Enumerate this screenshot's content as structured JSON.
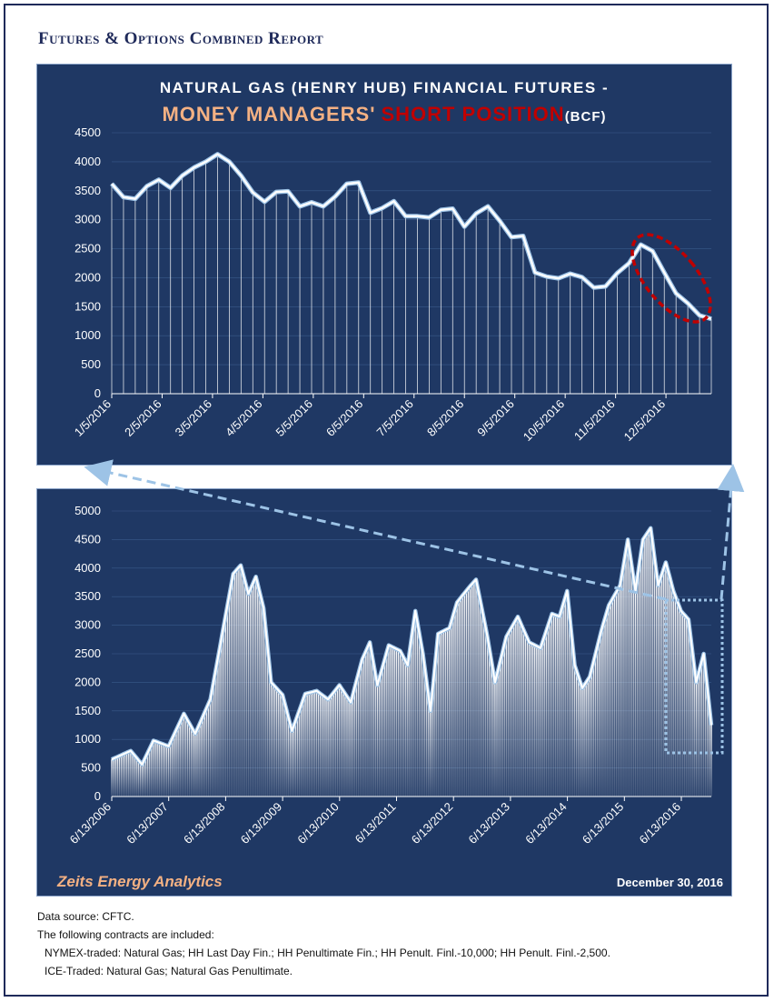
{
  "report_title": "Futures & Options Combined Report",
  "chart_data": [
    {
      "type": "area",
      "title_line1": "NATURAL GAS (HENRY HUB) FINANCIAL FUTURES -",
      "title_part1": "MONEY MANAGERS",
      "title_apostrophe": "'",
      "title_part2": "SHORT POSITION",
      "title_unit": "(BCF)",
      "ylim": [
        0,
        4500
      ],
      "yticks": [
        0,
        500,
        1000,
        1500,
        2000,
        2500,
        3000,
        3500,
        4000,
        4500
      ],
      "xtick_labels": [
        "1/5/2016",
        "2/5/2016",
        "3/5/2016",
        "4/5/2016",
        "5/5/2016",
        "6/5/2016",
        "7/5/2016",
        "8/5/2016",
        "9/5/2016",
        "10/5/2016",
        "11/5/2016",
        "12/5/2016"
      ],
      "values": [
        3620,
        3390,
        3360,
        3580,
        3690,
        3550,
        3760,
        3900,
        4000,
        4130,
        4000,
        3760,
        3470,
        3310,
        3480,
        3490,
        3230,
        3300,
        3230,
        3400,
        3620,
        3640,
        3120,
        3200,
        3320,
        3060,
        3060,
        3040,
        3170,
        3190,
        2880,
        3110,
        3230,
        2980,
        2700,
        2720,
        2090,
        2020,
        1990,
        2070,
        2010,
        1830,
        1850,
        2080,
        2250,
        2570,
        2460,
        2090,
        1730,
        1560,
        1350,
        1290
      ],
      "highlight_color": "#c00000",
      "accent_color": "#f4b183"
    },
    {
      "type": "area",
      "ylim": [
        0,
        5000
      ],
      "yticks": [
        0,
        500,
        1000,
        1500,
        2000,
        2500,
        3000,
        3500,
        4000,
        4500,
        5000
      ],
      "xtick_labels": [
        "6/13/2006",
        "6/13/2007",
        "6/13/2008",
        "6/13/2009",
        "6/13/2010",
        "6/13/2011",
        "6/13/2012",
        "6/13/2013",
        "6/13/2014",
        "6/13/2015",
        "6/13/2016"
      ],
      "key_points": [
        [
          0,
          650
        ],
        [
          10,
          800
        ],
        [
          16,
          560
        ],
        [
          22,
          980
        ],
        [
          30,
          880
        ],
        [
          38,
          1450
        ],
        [
          44,
          1100
        ],
        [
          52,
          1700
        ],
        [
          58,
          2800
        ],
        [
          64,
          3900
        ],
        [
          68,
          4050
        ],
        [
          72,
          3550
        ],
        [
          76,
          3850
        ],
        [
          80,
          3300
        ],
        [
          84,
          2000
        ],
        [
          90,
          1780
        ],
        [
          95,
          1150
        ],
        [
          102,
          1800
        ],
        [
          108,
          1850
        ],
        [
          114,
          1700
        ],
        [
          120,
          1950
        ],
        [
          126,
          1650
        ],
        [
          132,
          2400
        ],
        [
          136,
          2700
        ],
        [
          140,
          1950
        ],
        [
          146,
          2650
        ],
        [
          152,
          2550
        ],
        [
          156,
          2300
        ],
        [
          160,
          3250
        ],
        [
          164,
          2500
        ],
        [
          168,
          1500
        ],
        [
          172,
          2850
        ],
        [
          178,
          2950
        ],
        [
          182,
          3400
        ],
        [
          188,
          3650
        ],
        [
          192,
          3800
        ],
        [
          198,
          2800
        ],
        [
          202,
          2000
        ],
        [
          208,
          2800
        ],
        [
          214,
          3150
        ],
        [
          220,
          2700
        ],
        [
          226,
          2600
        ],
        [
          232,
          3200
        ],
        [
          236,
          3150
        ],
        [
          240,
          3600
        ],
        [
          244,
          2300
        ],
        [
          248,
          1900
        ],
        [
          252,
          2100
        ],
        [
          258,
          2900
        ],
        [
          262,
          3350
        ],
        [
          268,
          3700
        ],
        [
          272,
          4500
        ],
        [
          276,
          3600
        ],
        [
          280,
          4500
        ],
        [
          284,
          4700
        ],
        [
          288,
          3700
        ],
        [
          292,
          4100
        ],
        [
          296,
          3600
        ],
        [
          300,
          3250
        ],
        [
          304,
          3100
        ],
        [
          308,
          2000
        ],
        [
          312,
          2500
        ],
        [
          316,
          1250
        ]
      ],
      "source_label": "Zeits Energy Analytics",
      "date_label": "December 30, 2016",
      "source_color": "#f4b183"
    }
  ],
  "notes": {
    "source": "Data source: CFTC.",
    "intro": "The following contracts are included:",
    "nymex": "NYMEX-traded: Natural Gas; HH Last Day Fin.; HH Penultimate Fin.; HH Penult. Finl.-10,000; HH Penult. Finl.-2,500.",
    "ice": "ICE-Traded: Natural Gas; Natural Gas Penultimate."
  }
}
